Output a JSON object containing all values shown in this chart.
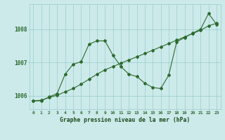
{
  "xlabel": "Graphe pression niveau de la mer (hPa)",
  "ylim": [
    1005.6,
    1008.75
  ],
  "xlim": [
    -0.5,
    23.5
  ],
  "yticks": [
    1006,
    1007,
    1008
  ],
  "xticks": [
    0,
    1,
    2,
    3,
    4,
    5,
    6,
    7,
    8,
    9,
    10,
    11,
    12,
    13,
    14,
    15,
    16,
    17,
    18,
    19,
    20,
    21,
    22,
    23
  ],
  "line_gradual_x": [
    0,
    1,
    2,
    3,
    4,
    5,
    6,
    7,
    8,
    9,
    10,
    11,
    12,
    13,
    14,
    15,
    16,
    17,
    18,
    19,
    20,
    21,
    22,
    23
  ],
  "line_gradual_y": [
    1005.85,
    1005.87,
    1005.95,
    1006.02,
    1006.12,
    1006.22,
    1006.35,
    1006.5,
    1006.65,
    1006.78,
    1006.88,
    1006.98,
    1007.08,
    1007.17,
    1007.27,
    1007.37,
    1007.47,
    1007.57,
    1007.67,
    1007.77,
    1007.87,
    1007.97,
    1008.1,
    1008.18
  ],
  "line_wavy_x": [
    0,
    1,
    2,
    3,
    4,
    5,
    6,
    7,
    8,
    9,
    10,
    11,
    12,
    13,
    14,
    15,
    16,
    17,
    18,
    19,
    20,
    21,
    22,
    23
  ],
  "line_wavy_y": [
    1005.85,
    1005.85,
    1005.97,
    1006.07,
    1006.65,
    1006.95,
    1007.02,
    1007.55,
    1007.65,
    1007.65,
    1007.22,
    1006.88,
    1006.65,
    1006.58,
    1006.38,
    1006.25,
    1006.22,
    1006.62,
    1007.62,
    1007.75,
    1007.88,
    1008.0,
    1008.47,
    1008.15
  ],
  "line_color": "#2d6a2d",
  "bg_color": "#cceaea",
  "grid_color": "#99cccc",
  "tick_label_color": "#2d6a2d",
  "xlabel_color": "#1a4a1a",
  "marker_size": 2.0
}
